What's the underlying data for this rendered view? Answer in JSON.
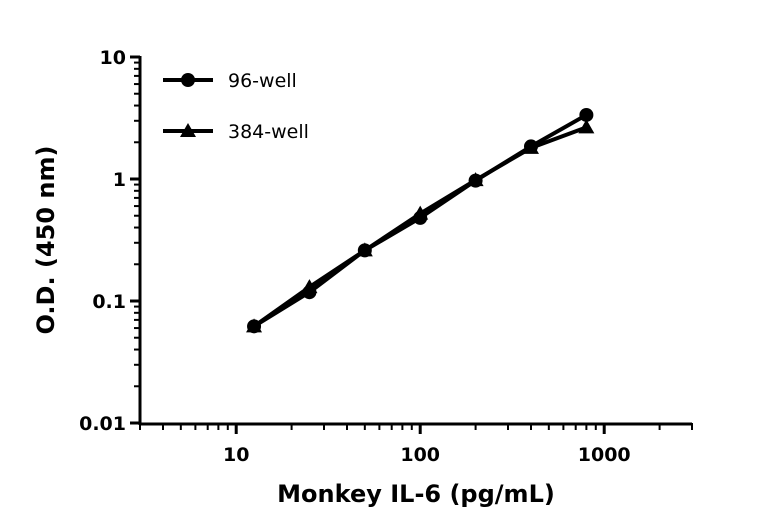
{
  "chart_data": {
    "type": "line",
    "xlabel": "Monkey IL-6 (pg/mL)",
    "ylabel": "O.D. (450 nm)",
    "xscale": "log",
    "yscale": "log",
    "xlim": [
      3,
      3000
    ],
    "ylim": [
      0.01,
      10
    ],
    "xticks": [
      {
        "value": 10,
        "label": "10"
      },
      {
        "value": 100,
        "label": "100"
      },
      {
        "value": 1000,
        "label": "1000"
      }
    ],
    "yticks": [
      {
        "value": 0.01,
        "label": "0.01"
      },
      {
        "value": 0.1,
        "label": "0.1"
      },
      {
        "value": 1,
        "label": "1"
      },
      {
        "value": 10,
        "label": "10"
      }
    ],
    "grid": false,
    "legend_position": "top-left",
    "x": [
      12.5,
      25,
      50,
      100,
      200,
      400,
      800
    ],
    "series": [
      {
        "name": "96-well",
        "marker": "circle",
        "values": [
          0.062,
          0.118,
          0.26,
          0.48,
          0.97,
          1.85,
          3.35
        ]
      },
      {
        "name": "384-well",
        "marker": "triangle",
        "values": [
          0.062,
          0.13,
          0.26,
          0.52,
          0.98,
          1.8,
          2.65
        ]
      }
    ]
  }
}
